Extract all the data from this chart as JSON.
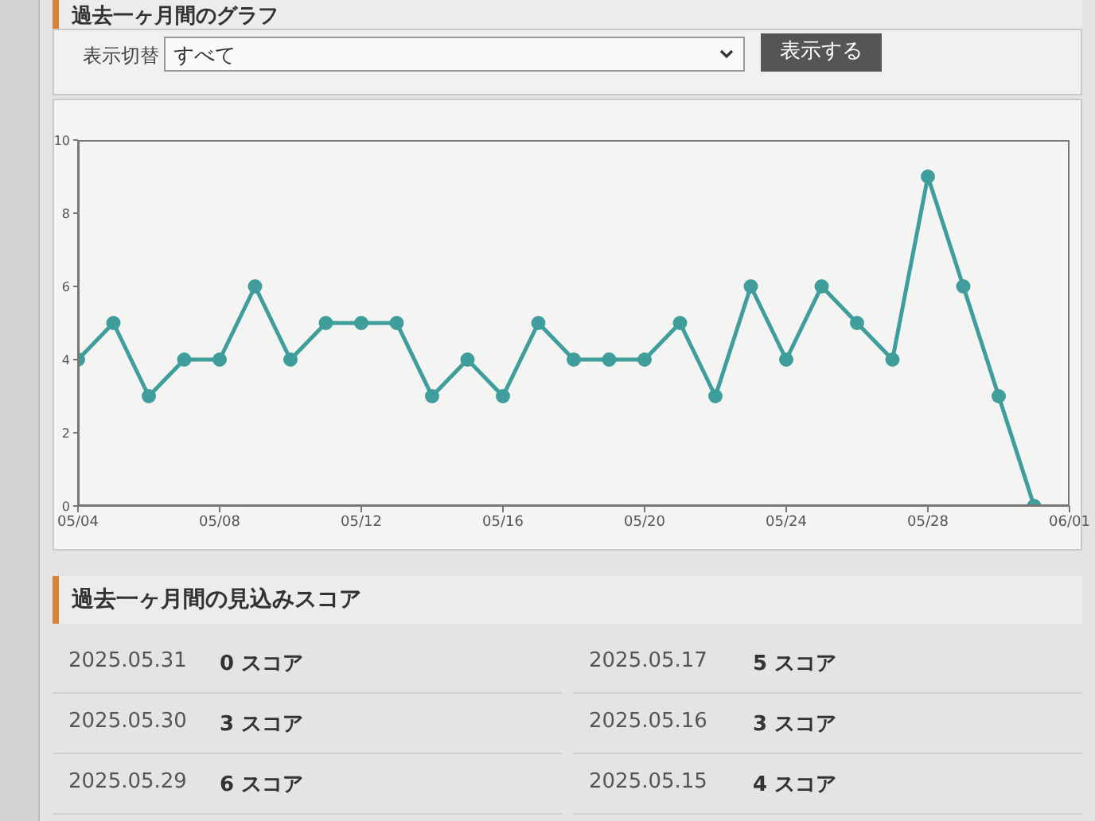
{
  "chart_data": {
    "type": "line",
    "title": "過去一ヶ月間のグラフ",
    "x": [
      "2025-05-04",
      "2025-05-05",
      "2025-05-06",
      "2025-05-07",
      "2025-05-08",
      "2025-05-09",
      "2025-05-10",
      "2025-05-11",
      "2025-05-12",
      "2025-05-13",
      "2025-05-14",
      "2025-05-15",
      "2025-05-16",
      "2025-05-17",
      "2025-05-18",
      "2025-05-19",
      "2025-05-20",
      "2025-05-21",
      "2025-05-22",
      "2025-05-23",
      "2025-05-24",
      "2025-05-25",
      "2025-05-26",
      "2025-05-27",
      "2025-05-28",
      "2025-05-29",
      "2025-05-30",
      "2025-05-31"
    ],
    "series": [
      {
        "color": "#3f9e9c",
        "values": [
          4,
          5,
          3,
          4,
          4,
          6,
          4,
          5,
          5,
          5,
          3,
          4,
          3,
          5,
          4,
          4,
          4,
          5,
          3,
          6,
          4,
          6,
          5,
          4,
          9,
          6,
          3,
          0
        ]
      }
    ],
    "xlim": [
      "2025-05-04",
      "2025-06-01"
    ],
    "xticks": [
      {
        "value": "2025-05-04",
        "label": "05/04"
      },
      {
        "value": "2025-05-08",
        "label": "05/08"
      },
      {
        "value": "2025-05-12",
        "label": "05/12"
      },
      {
        "value": "2025-05-16",
        "label": "05/16"
      },
      {
        "value": "2025-05-20",
        "label": "05/20"
      },
      {
        "value": "2025-05-24",
        "label": "05/24"
      },
      {
        "value": "2025-05-28",
        "label": "05/28"
      },
      {
        "value": "2025-06-01",
        "label": "06/01"
      }
    ],
    "ylim": [
      0,
      10
    ],
    "yticks": [
      0,
      2,
      4,
      6,
      8,
      10
    ],
    "marker": "circle",
    "line_style": "solid",
    "annotations": [
      "表示切替",
      "すべて",
      "表示する",
      "過去一ヶ月間の見込みスコア",
      "2025.05.31",
      "0 スコア",
      "2025.05.30",
      "3 スコア",
      "2025.05.29",
      "6 スコア",
      "2025.05.17",
      "5 スコア",
      "2025.05.16",
      "3 スコア",
      "2025.05.15",
      "4 スコア"
    ]
  }
}
